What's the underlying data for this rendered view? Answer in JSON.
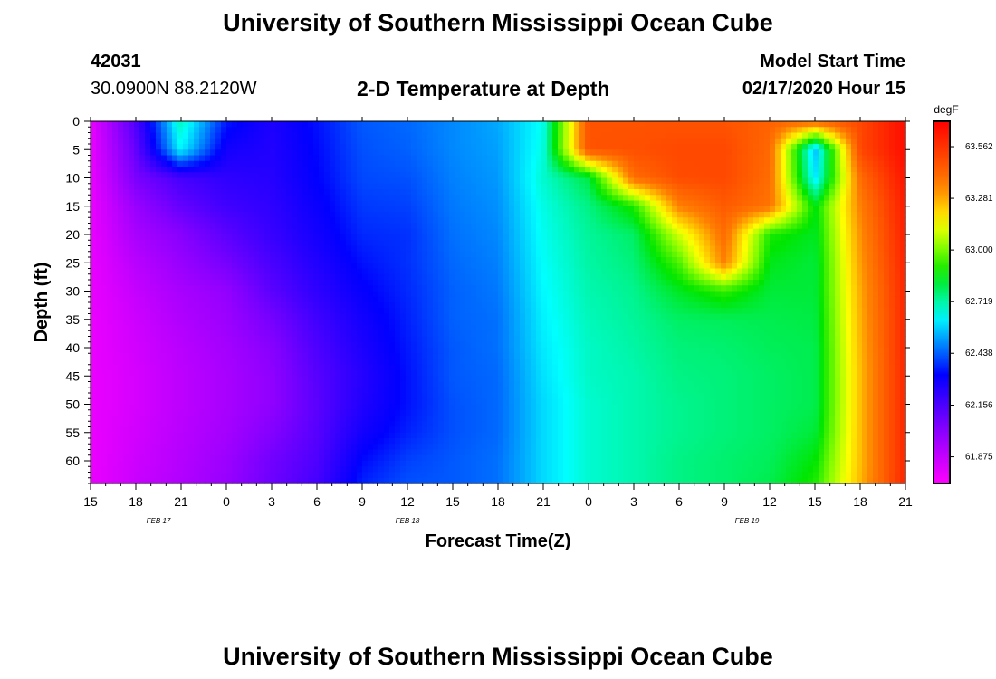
{
  "header": {
    "title": "University of Southern Mississippi Ocean Cube",
    "station": "42031",
    "location": "30.0900N 88.2120W",
    "subtitle": "2-D Temperature at Depth",
    "model_label": "Model Start Time",
    "model_time": "02/17/2020 Hour 15"
  },
  "footer": {
    "title": "University of Southern Mississippi Ocean Cube"
  },
  "chart_data": {
    "type": "heatmap",
    "title": "2-D Temperature at Depth",
    "xlabel": "Forecast Time(Z)",
    "ylabel": "Depth (ft)",
    "x_ticks": [
      "15",
      "18",
      "21",
      "0",
      "3",
      "6",
      "9",
      "12",
      "15",
      "18",
      "21",
      "0",
      "3",
      "6",
      "9",
      "12",
      "15",
      "18",
      "21"
    ],
    "x_ticks_hours": [
      0,
      3,
      6,
      9,
      12,
      15,
      18,
      21,
      24,
      27,
      30,
      33,
      36,
      39,
      42,
      45,
      48,
      51,
      54
    ],
    "date_labels": [
      {
        "label": "FEB 17",
        "hour": 4.5
      },
      {
        "label": "FEB 18",
        "hour": 21
      },
      {
        "label": "FEB 19",
        "hour": 43.5
      }
    ],
    "xlim_hours": [
      0,
      54
    ],
    "y_ticks": [
      "0",
      "5",
      "10",
      "15",
      "20",
      "25",
      "30",
      "35",
      "40",
      "45",
      "50",
      "55",
      "60"
    ],
    "y_tick_values": [
      0,
      5,
      10,
      15,
      20,
      25,
      30,
      35,
      40,
      45,
      50,
      55,
      60
    ],
    "ylim": [
      0,
      64
    ],
    "y_inverted": true,
    "colorbar": {
      "unit": "degF",
      "tick_labels": [
        "63.562",
        "63.281",
        "63.000",
        "62.719",
        "62.438",
        "62.156",
        "61.875"
      ],
      "min": 61.73,
      "max": 63.7
    },
    "temperature_grid_degF": {
      "time_hours": [
        0,
        3,
        6,
        9,
        12,
        15,
        18,
        21,
        24,
        27,
        30,
        33,
        36,
        39,
        42,
        45,
        48,
        51,
        54
      ],
      "depths_ft": [
        0,
        5,
        10,
        15,
        20,
        25,
        30,
        35,
        40,
        45,
        50,
        55,
        60,
        64
      ],
      "rows": [
        [
          61.78,
          62.15,
          62.7,
          62.35,
          62.26,
          62.34,
          62.43,
          62.45,
          62.49,
          62.53,
          62.65,
          63.47,
          63.47,
          63.47,
          63.47,
          63.43,
          63.42,
          63.5,
          63.67
        ],
        [
          61.78,
          62.1,
          62.63,
          62.28,
          62.25,
          62.33,
          62.42,
          62.44,
          62.49,
          62.52,
          62.66,
          63.47,
          63.48,
          63.5,
          63.5,
          63.41,
          62.55,
          63.5,
          63.67
        ],
        [
          61.78,
          62.05,
          62.17,
          62.22,
          62.24,
          62.32,
          62.41,
          62.42,
          62.48,
          62.51,
          62.68,
          62.81,
          63.4,
          63.49,
          63.5,
          63.4,
          62.6,
          63.4,
          63.65
        ],
        [
          61.78,
          61.98,
          62.1,
          62.18,
          62.22,
          62.3,
          62.39,
          62.4,
          62.47,
          62.5,
          62.66,
          62.75,
          62.9,
          63.35,
          63.45,
          63.38,
          62.86,
          63.35,
          63.63
        ],
        [
          61.78,
          61.94,
          62.02,
          62.12,
          62.2,
          62.28,
          62.37,
          62.38,
          62.46,
          62.49,
          62.65,
          62.73,
          62.78,
          63.1,
          63.4,
          62.9,
          62.84,
          63.32,
          63.62
        ],
        [
          61.78,
          61.9,
          61.98,
          62.06,
          62.16,
          62.25,
          62.34,
          62.38,
          62.45,
          62.48,
          62.64,
          62.72,
          62.76,
          62.95,
          63.35,
          62.85,
          62.82,
          63.3,
          63.61
        ],
        [
          61.78,
          61.87,
          61.94,
          61.99,
          62.12,
          62.22,
          62.31,
          62.37,
          62.44,
          62.47,
          62.63,
          62.71,
          62.74,
          62.84,
          62.92,
          62.82,
          62.82,
          63.28,
          63.6
        ],
        [
          61.78,
          61.85,
          61.92,
          61.97,
          62.06,
          62.18,
          62.28,
          62.36,
          62.44,
          62.46,
          62.62,
          62.7,
          62.73,
          62.78,
          62.79,
          62.8,
          62.81,
          63.27,
          63.6
        ],
        [
          61.78,
          61.84,
          61.9,
          61.95,
          62.02,
          62.15,
          62.26,
          62.35,
          62.43,
          62.46,
          62.61,
          62.69,
          62.72,
          62.76,
          62.77,
          62.79,
          62.8,
          63.26,
          63.6
        ],
        [
          61.78,
          61.83,
          61.89,
          61.94,
          62.0,
          62.13,
          62.24,
          62.34,
          62.43,
          62.45,
          62.6,
          62.69,
          62.71,
          62.75,
          62.76,
          62.78,
          62.8,
          63.25,
          63.6
        ],
        [
          61.78,
          61.83,
          61.89,
          61.94,
          62.0,
          62.12,
          62.25,
          62.34,
          62.42,
          62.45,
          62.59,
          62.68,
          62.71,
          62.74,
          62.76,
          62.78,
          62.8,
          63.25,
          63.6
        ],
        [
          61.78,
          61.84,
          61.9,
          61.95,
          62.03,
          62.13,
          62.28,
          62.36,
          62.42,
          62.45,
          62.59,
          62.68,
          62.71,
          62.74,
          62.76,
          62.78,
          62.82,
          63.25,
          63.6
        ],
        [
          61.78,
          61.85,
          61.91,
          61.97,
          62.07,
          62.15,
          62.33,
          62.4,
          62.43,
          62.46,
          62.59,
          62.68,
          62.71,
          62.75,
          62.77,
          62.79,
          62.87,
          63.25,
          63.6
        ],
        [
          61.78,
          61.86,
          61.92,
          61.98,
          62.08,
          62.17,
          62.36,
          62.42,
          62.43,
          62.46,
          62.59,
          62.68,
          62.71,
          62.75,
          62.77,
          62.8,
          62.9,
          63.26,
          63.6
        ]
      ]
    }
  }
}
